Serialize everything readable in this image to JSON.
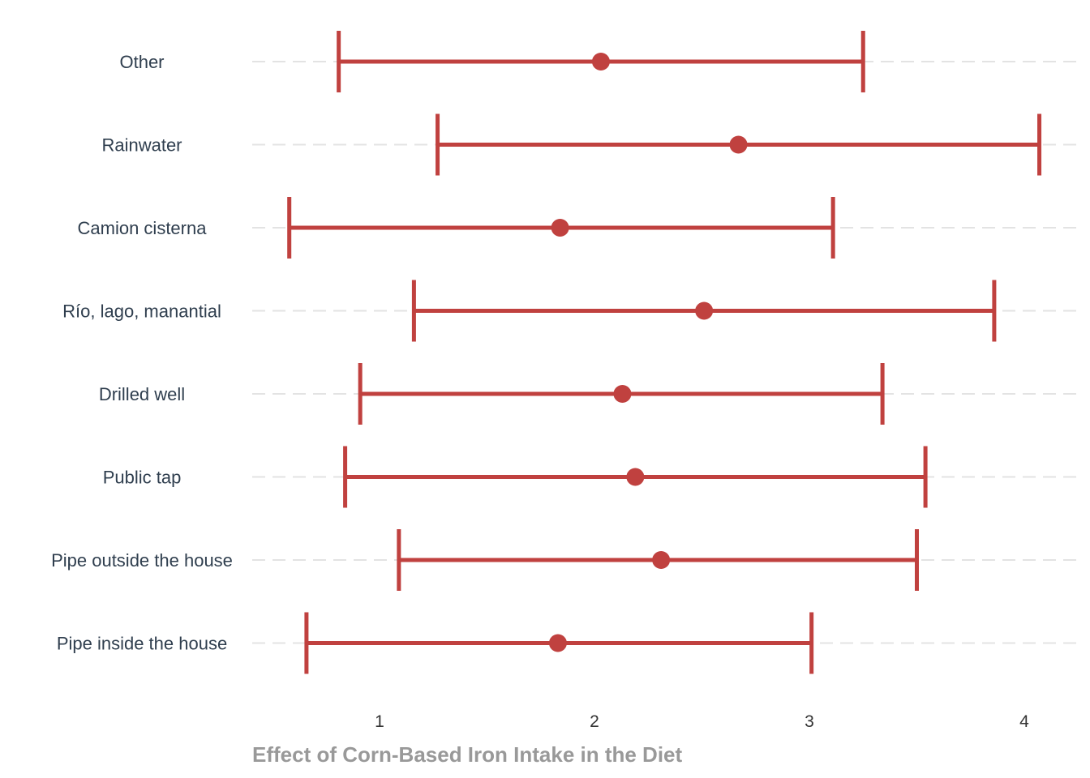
{
  "chart_data": {
    "type": "errorbar",
    "orientation": "horizontal",
    "xlabel": "Effect of Corn-Based Iron Intake in the Diet",
    "ylabel": "",
    "xlim": [
      0.4,
      4.1
    ],
    "xticks": [
      1,
      2,
      3,
      4
    ],
    "grid": "horizontal dashed",
    "color": "#c0413f",
    "categories": [
      "Other",
      "Rainwater",
      "Camion cisterna",
      "Río, lago, manantial",
      "Drilled well",
      "Public tap",
      "Pipe outside the house",
      "Pipe inside the house"
    ],
    "estimates": [
      2.03,
      2.67,
      1.84,
      2.51,
      2.13,
      2.19,
      2.31,
      1.83
    ],
    "lower": [
      0.81,
      1.27,
      0.58,
      1.16,
      0.91,
      0.84,
      1.09,
      0.66
    ],
    "upper": [
      3.25,
      4.07,
      3.11,
      3.86,
      3.34,
      3.54,
      3.5,
      3.01
    ]
  }
}
